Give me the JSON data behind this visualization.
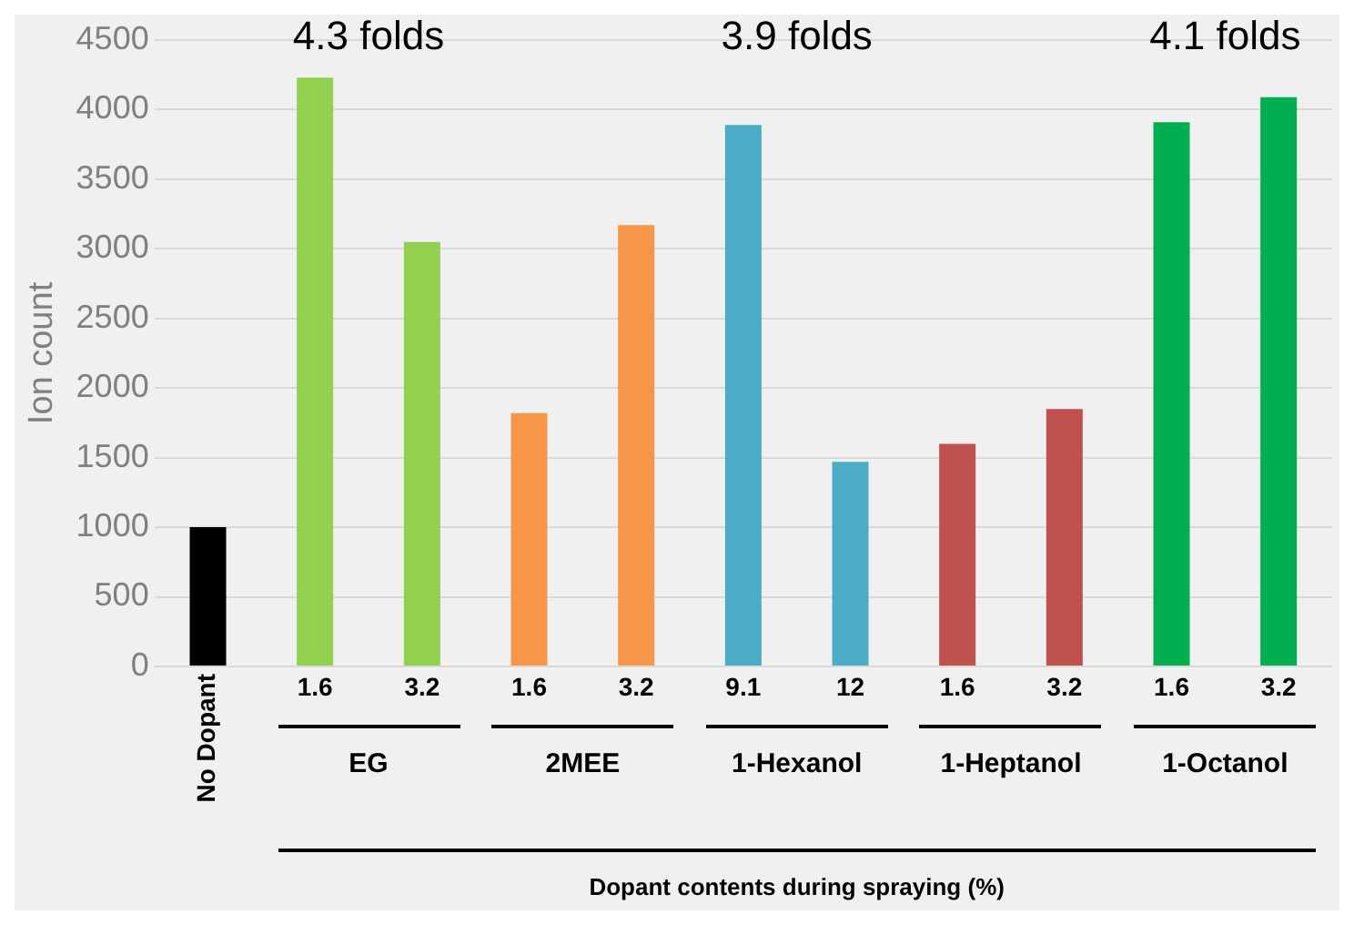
{
  "chart_data": {
    "type": "bar",
    "ylabel": "Ion count",
    "categories": [
      "No Dopant",
      "1.6",
      "3.2",
      "1.6",
      "3.2",
      "9.1",
      "12",
      "1.6",
      "3.2",
      "1.6",
      "3.2"
    ],
    "values": [
      1000,
      4230,
      3050,
      1820,
      3170,
      3890,
      1470,
      1600,
      1850,
      3910,
      4090
    ],
    "colors": [
      "#000000",
      "#92d050",
      "#92d050",
      "#f79646",
      "#f79646",
      "#4bacc6",
      "#4bacc6",
      "#c0504d",
      "#c0504d",
      "#00b050",
      "#00b050"
    ],
    "ylim": [
      0,
      4500
    ],
    "yticks": [
      0,
      500,
      1000,
      1500,
      2000,
      2500,
      3000,
      3500,
      4000,
      4500
    ],
    "grid": "y",
    "legend": false,
    "annotations": [
      "4.3 folds",
      "3.9 folds",
      "4.1 folds",
      "EG",
      "2MEE",
      "1-Hexanol",
      "1-Heptanol",
      "1-Octanol",
      "Dopant contents during spraying (%)"
    ]
  }
}
